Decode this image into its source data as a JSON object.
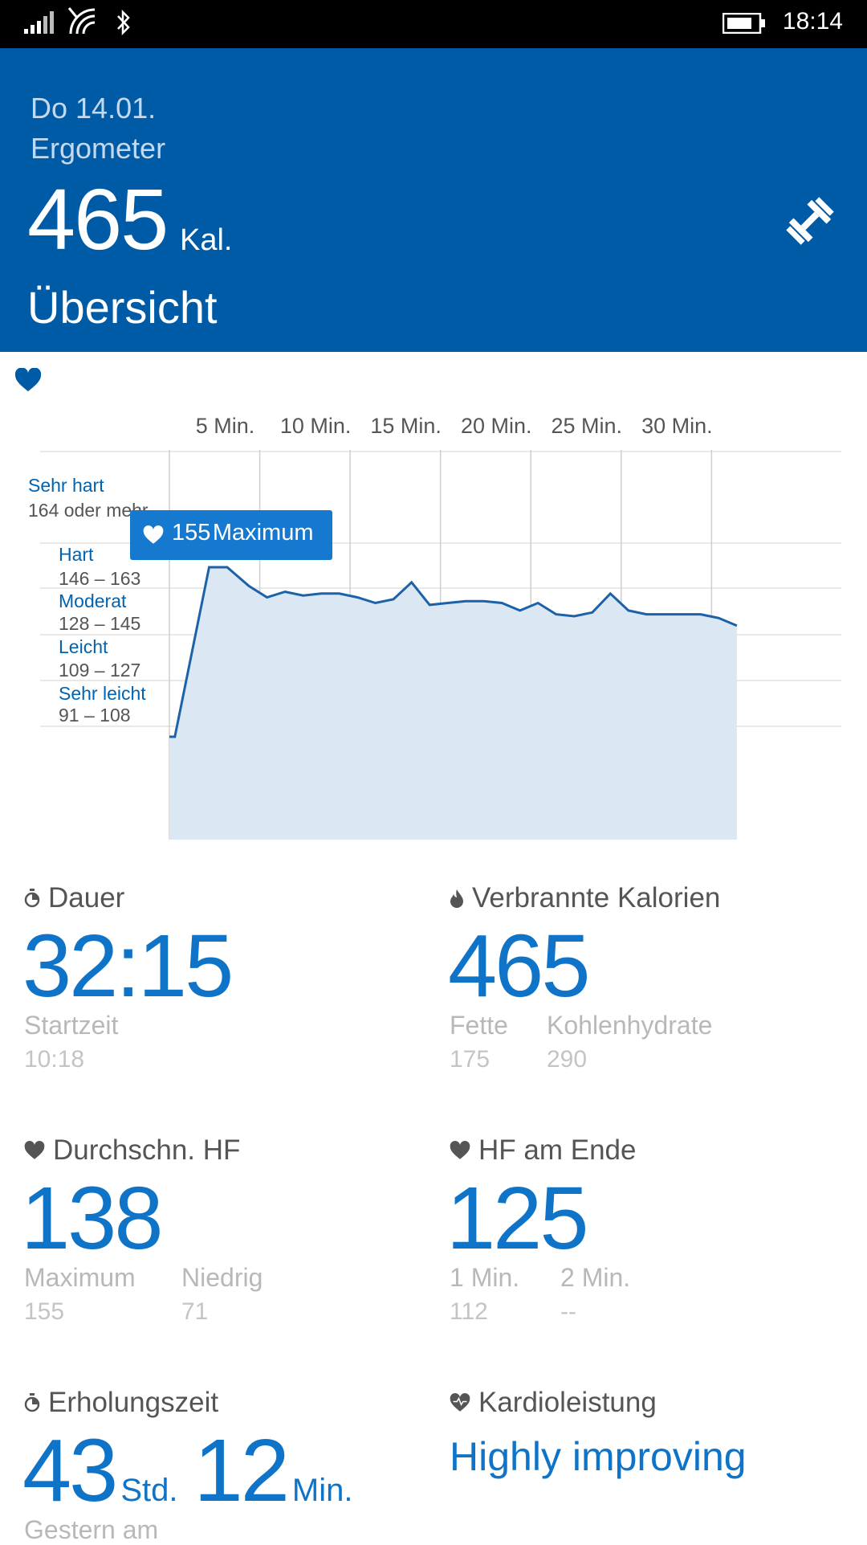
{
  "status_bar": {
    "time": "18:14"
  },
  "header": {
    "date": "Do 14.01.",
    "activity": "Ergometer",
    "calories_value": "465",
    "calories_unit": "Kal.",
    "section_title": "Übersicht",
    "icon": "dumbbell-icon",
    "background_color": "#005ba7"
  },
  "chart_data": {
    "type": "area",
    "x_tick_labels": [
      "5 Min.",
      "10 Min.",
      "15 Min.",
      "20 Min.",
      "25 Min.",
      "30 Min."
    ],
    "x_unit": "min",
    "xlim": [
      0,
      32.25
    ],
    "y_unit": "bpm",
    "zones": [
      {
        "name": "Sehr hart",
        "range": "164 oder mehr"
      },
      {
        "name": "Hart",
        "range": "146 – 163"
      },
      {
        "name": "Moderat",
        "range": "128 – 145"
      },
      {
        "name": "Leicht",
        "range": "109 – 127"
      },
      {
        "name": "Sehr leicht",
        "range": "91 – 108"
      }
    ],
    "tooltip": {
      "value": "155",
      "label": "Maximum"
    },
    "series": [
      {
        "x": [
          0,
          0.3,
          2.2,
          3.2,
          4.4,
          5.4,
          6.4,
          7.4,
          8.4,
          9.4,
          10.4,
          11.4,
          12.4,
          13.4,
          14.4,
          15.4,
          16.4,
          17.4,
          18.4,
          19.4,
          20.4,
          21.4,
          22.4,
          23.4,
          24.4,
          25.4,
          26.4,
          27.4,
          28.4,
          29.4,
          30.4,
          31.4
        ],
        "y": [
          110,
          110,
          155,
          155,
          150,
          147,
          148.5,
          147.5,
          148,
          148,
          147,
          145.5,
          146.5,
          151,
          145,
          145.5,
          146,
          146,
          145.5,
          143.5,
          145.5,
          142.5,
          142,
          143,
          148,
          143.5,
          142.5,
          142.5,
          142.5,
          142.5,
          141.5,
          139.5
        ]
      }
    ],
    "grid": true,
    "color": "#1b62a8",
    "fill_color": "#dbe7f2"
  },
  "stats": {
    "duration": {
      "title": "Dauer",
      "value": "32:15",
      "sub_label": "Startzeit",
      "sub_value": "10:18",
      "icon": "stopwatch-icon"
    },
    "calories": {
      "title": "Verbrannte Kalorien",
      "value": "465",
      "sub1_label": "Fette",
      "sub1_value": "175",
      "sub2_label": "Kohlenhydrate",
      "sub2_value": "290",
      "icon": "flame-icon"
    },
    "avg_hr": {
      "title": "Durchschn. HF",
      "value": "138",
      "sub1_label": "Maximum",
      "sub1_value": "155",
      "sub2_label": "Niedrig",
      "sub2_value": "71",
      "icon": "heart-icon"
    },
    "end_hr": {
      "title": "HF am Ende",
      "value": "125",
      "sub1_label": "1 Min.",
      "sub1_value": "112",
      "sub2_label": "2 Min.",
      "sub2_value": "--",
      "icon": "heart-icon"
    },
    "recovery": {
      "title": "Erholungszeit",
      "hours": "43",
      "hours_unit": "Std.",
      "minutes": "12",
      "minutes_unit": "Min.",
      "sub_label": "Gestern am",
      "icon": "stopwatch-icon"
    },
    "cardio": {
      "title": "Kardioleistung",
      "value": "Highly improving",
      "icon": "heart-pulse-icon"
    }
  }
}
